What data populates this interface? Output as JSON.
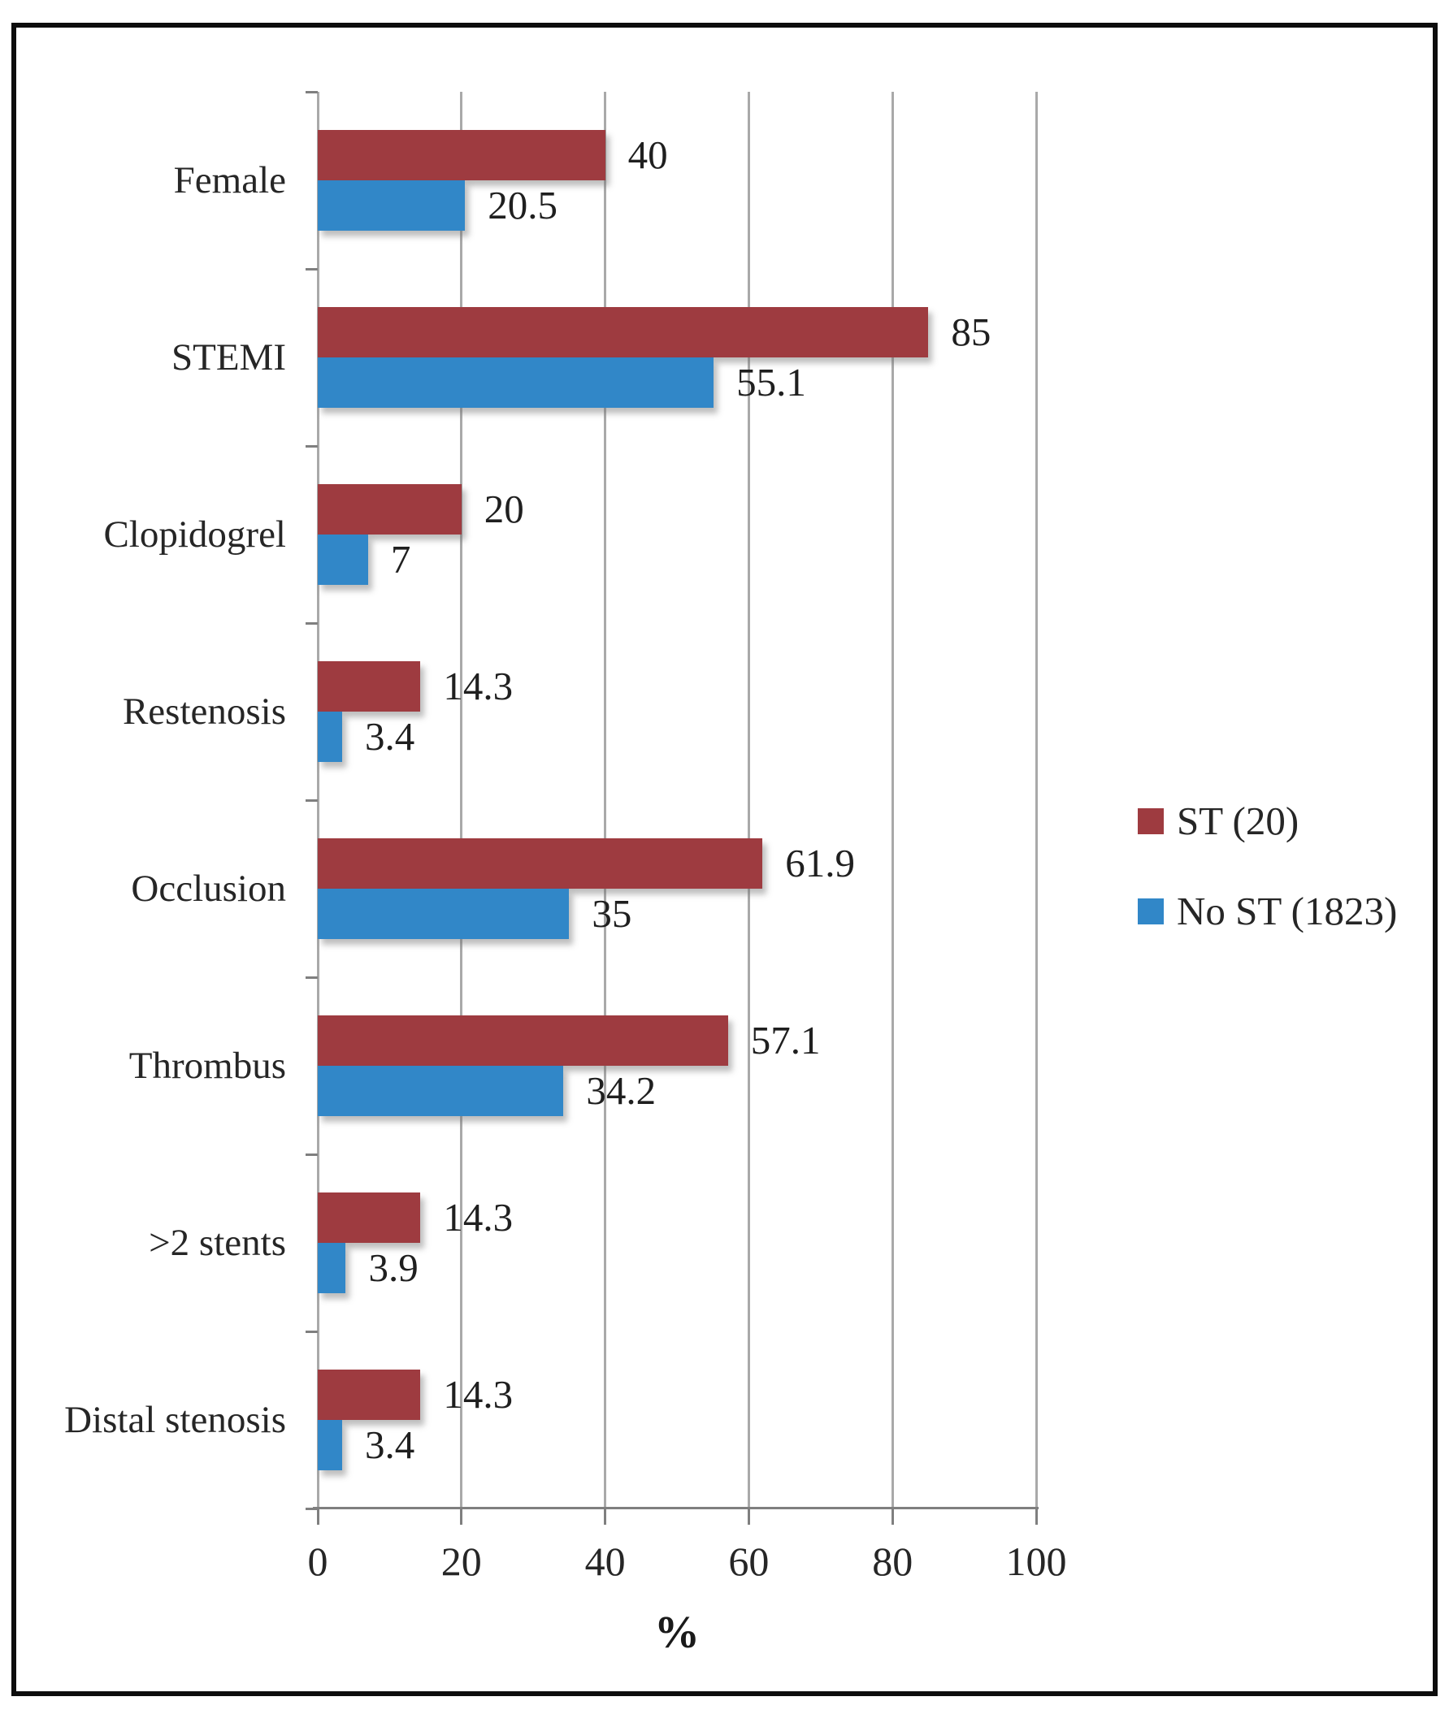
{
  "figure": {
    "xlabel": "%",
    "frame_color": "#0d0d0d",
    "gridline_color": "#a9a9a9",
    "axis_color": "#7f7f7f",
    "text_color": "#262626"
  },
  "chart_data": {
    "type": "bar",
    "orientation": "horizontal",
    "title": "",
    "xlabel": "%",
    "ylabel": "",
    "xlim": [
      0,
      100
    ],
    "xticks": [
      0,
      20,
      40,
      60,
      80,
      100
    ],
    "grid": true,
    "legend_position": "right",
    "categories": [
      "Female",
      "STEMI",
      "Clopidogrel",
      "Restenosis",
      "Occlusion",
      "Thrombus",
      ">2 stents",
      "Distal stenosis"
    ],
    "series": [
      {
        "name": "ST (20)",
        "color": "#9e3b40",
        "values": [
          40,
          85,
          20,
          14.3,
          61.9,
          57.1,
          14.3,
          14.3
        ],
        "labels": [
          "40",
          "85",
          "20",
          "14.3",
          "61.9",
          "57.1",
          "14.3",
          "14.3"
        ]
      },
      {
        "name": "No ST (1823)",
        "color": "#3187c8",
        "values": [
          20.5,
          55.1,
          7,
          3.4,
          35,
          34.2,
          3.9,
          3.4
        ],
        "labels": [
          "20.5",
          "55.1",
          "7",
          "3.4",
          "35",
          "34.2",
          "3.9",
          "3.4"
        ]
      }
    ]
  }
}
